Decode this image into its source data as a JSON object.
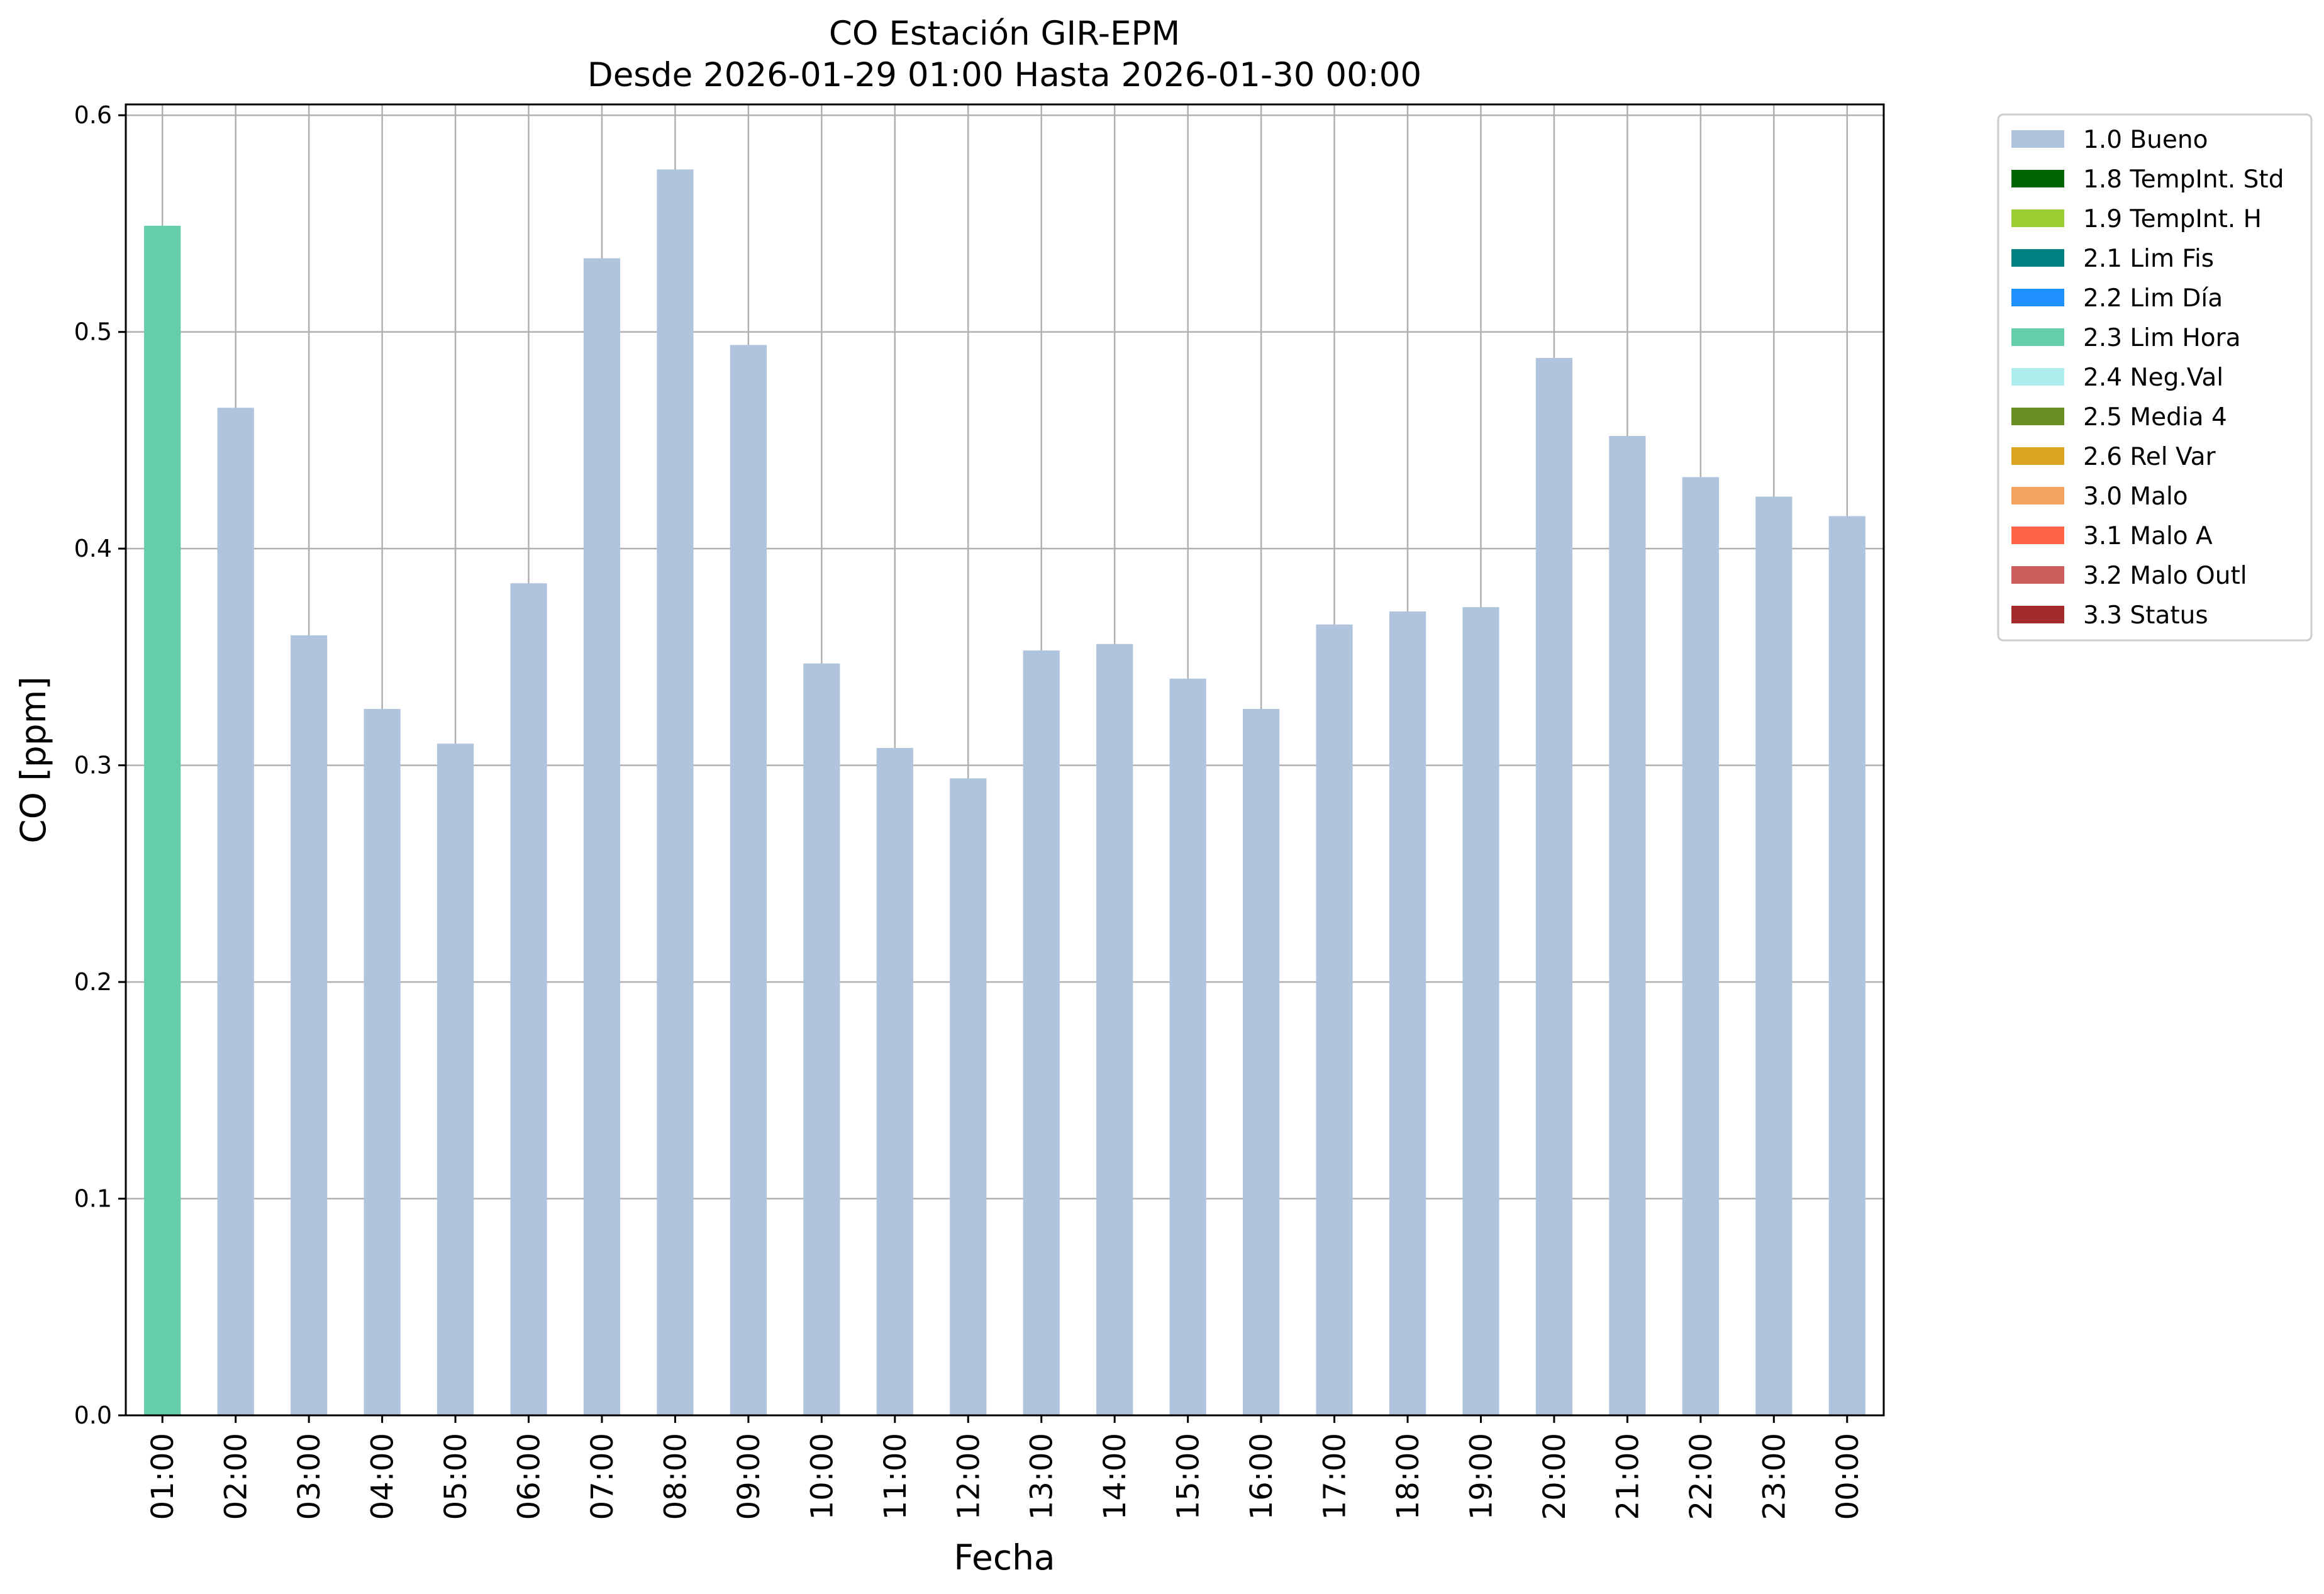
{
  "chart_data": {
    "type": "bar",
    "title": "CO Estación GIR-EPM",
    "subtitle": "Desde 2026-01-29 01:00 Hasta 2026-01-30 00:00",
    "xlabel": "Fecha",
    "ylabel": "CO [ppm]",
    "ylim": [
      0,
      0.605
    ],
    "yticks": [
      "0.0",
      "0.1",
      "0.2",
      "0.3",
      "0.4",
      "0.5",
      "0.6"
    ],
    "grid": true,
    "legend_position": "outside-right",
    "categories": [
      "01:00",
      "02:00",
      "03:00",
      "04:00",
      "05:00",
      "06:00",
      "07:00",
      "08:00",
      "09:00",
      "10:00",
      "11:00",
      "12:00",
      "13:00",
      "14:00",
      "15:00",
      "16:00",
      "17:00",
      "18:00",
      "19:00",
      "20:00",
      "21:00",
      "22:00",
      "23:00",
      "00:00"
    ],
    "values": [
      0.549,
      0.465,
      0.36,
      0.326,
      0.31,
      0.384,
      0.534,
      0.575,
      0.494,
      0.347,
      0.308,
      0.294,
      0.353,
      0.356,
      0.34,
      0.326,
      0.365,
      0.371,
      0.373,
      0.488,
      0.452,
      0.433,
      0.424,
      0.415
    ],
    "value_flags": [
      "2.3 Lim Hora",
      "1.0 Bueno",
      "1.0 Bueno",
      "1.0 Bueno",
      "1.0 Bueno",
      "1.0 Bueno",
      "1.0 Bueno",
      "1.0 Bueno",
      "1.0 Bueno",
      "1.0 Bueno",
      "1.0 Bueno",
      "1.0 Bueno",
      "1.0 Bueno",
      "1.0 Bueno",
      "1.0 Bueno",
      "1.0 Bueno",
      "1.0 Bueno",
      "1.0 Bueno",
      "1.0 Bueno",
      "1.0 Bueno",
      "1.0 Bueno",
      "1.0 Bueno",
      "1.0 Bueno",
      "1.0 Bueno"
    ],
    "legend": [
      {
        "label": "1.0 Bueno",
        "color": "#b0c4de"
      },
      {
        "label": "1.8 TempInt. Std",
        "color": "#006400"
      },
      {
        "label": "1.9 TempInt. H",
        "color": "#9acd32"
      },
      {
        "label": "2.1 Lim Fis",
        "color": "#008080"
      },
      {
        "label": "2.2 Lim Día",
        "color": "#1e90ff"
      },
      {
        "label": "2.3 Lim Hora",
        "color": "#66cdaa"
      },
      {
        "label": "2.4 Neg.Val",
        "color": "#afeeee"
      },
      {
        "label": "2.5 Media 4",
        "color": "#6b8e23"
      },
      {
        "label": "2.6 Rel Var",
        "color": "#daa520"
      },
      {
        "label": "3.0 Malo",
        "color": "#f4a460"
      },
      {
        "label": "3.1 Malo A",
        "color": "#ff6347"
      },
      {
        "label": "3.2 Malo Outl",
        "color": "#cd5c5c"
      },
      {
        "label": "3.3 Status",
        "color": "#a52a2a"
      }
    ]
  }
}
